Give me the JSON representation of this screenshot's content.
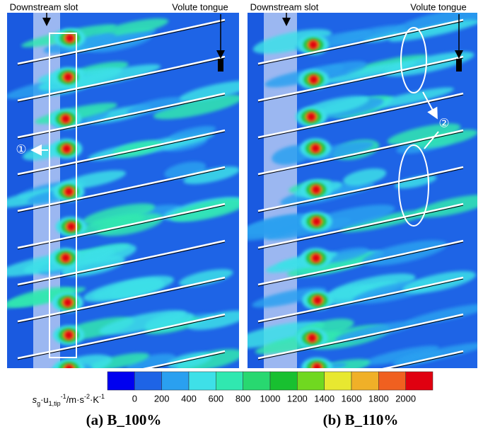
{
  "panels": [
    {
      "caption": "(a) B_100%",
      "slot_label": "Downstream slot",
      "tongue_label": "Volute tongue",
      "marker": "①"
    },
    {
      "caption": "(b) B_110%",
      "slot_label": "Downstream slot",
      "tongue_label": "Volute tongue",
      "marker": "②"
    }
  ],
  "colorbar": {
    "label_parts": [
      "s",
      "g",
      "·u",
      "1,tip",
      "-1",
      "/m·s",
      "-2",
      "·K",
      "-1"
    ],
    "ticks": [
      0,
      200,
      400,
      600,
      800,
      1000,
      1200,
      1400,
      1600,
      1800,
      2000
    ],
    "colors": [
      "#0000f0",
      "#1e64e6",
      "#2aa0f0",
      "#3ee0e8",
      "#30e8b0",
      "#28d870",
      "#18c030",
      "#70d820",
      "#e8e830",
      "#f0b028",
      "#f06020",
      "#e00010"
    ]
  }
}
